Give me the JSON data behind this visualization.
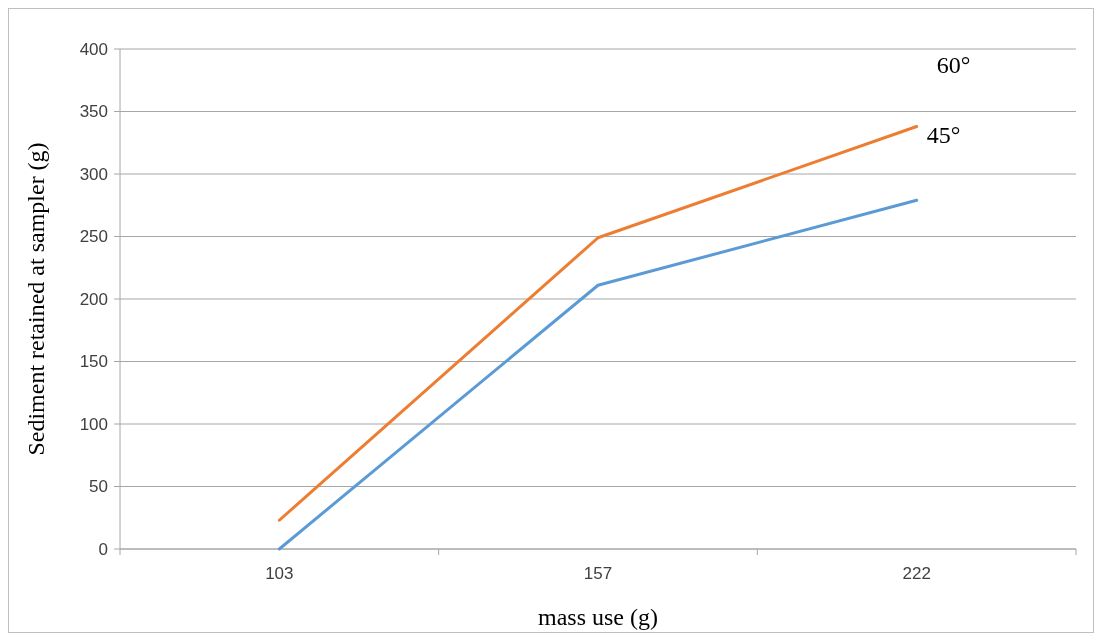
{
  "chart_data": {
    "type": "line",
    "xlabel": "mass use (g)",
    "ylabel": "Sediment retained at sampler (g)",
    "categories": [
      "103",
      "157",
      "222"
    ],
    "series": [
      {
        "color": "#ed7d31",
        "values": [
          23,
          249,
          338
        ]
      },
      {
        "color": "#5b9bd5",
        "values": [
          0,
          211,
          279
        ]
      }
    ],
    "ylim": [
      0,
      400
    ],
    "yticks": [
      0,
      50,
      100,
      150,
      200,
      250,
      300,
      350,
      400
    ],
    "grid": "y",
    "annotations": [
      "60°",
      "45°"
    ]
  }
}
